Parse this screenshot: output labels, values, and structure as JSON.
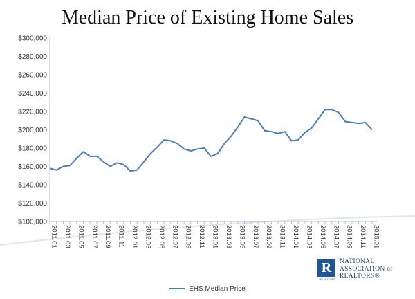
{
  "chart_data": {
    "type": "line",
    "title": "Median Price of Existing Home Sales",
    "xlabel": "",
    "ylabel": "",
    "ylim": [
      100000,
      300000
    ],
    "y_ticks": [
      "$100,000",
      "$120,000",
      "$140,000",
      "$160,000",
      "$180,000",
      "$200,000",
      "$220,000",
      "$240,000",
      "$260,000",
      "$280,000",
      "$300,000"
    ],
    "x_tick_labels": [
      "2011.01",
      "2011.03",
      "2011.05",
      "2011.07",
      "2011.09",
      "2011.11",
      "2012.01",
      "2012.03",
      "2012.05",
      "2012.07",
      "2012.09",
      "2012.11",
      "2013.01",
      "2013.03",
      "2013.05",
      "2013.07",
      "2013.09",
      "2013.11",
      "2014.01",
      "2014.03",
      "2014.05",
      "2014.07",
      "2014.09",
      "2014.11",
      "2015.01"
    ],
    "categories": [
      "2011.01",
      "2011.02",
      "2011.03",
      "2011.04",
      "2011.05",
      "2011.06",
      "2011.07",
      "2011.08",
      "2011.09",
      "2011.10",
      "2011.11",
      "2011.12",
      "2012.01",
      "2012.02",
      "2012.03",
      "2012.04",
      "2012.05",
      "2012.06",
      "2012.07",
      "2012.08",
      "2012.09",
      "2012.10",
      "2012.11",
      "2012.12",
      "2013.01",
      "2013.02",
      "2013.03",
      "2013.04",
      "2013.05",
      "2013.06",
      "2013.07",
      "2013.08",
      "2013.09",
      "2013.10",
      "2013.11",
      "2013.12",
      "2014.01",
      "2014.02",
      "2014.03",
      "2014.04",
      "2014.05",
      "2014.06",
      "2014.07",
      "2014.08",
      "2014.09",
      "2014.10",
      "2014.11",
      "2014.12",
      "2015.01"
    ],
    "series": [
      {
        "name": "EHS Median Price",
        "color": "#4a7ebb",
        "values": [
          158000,
          156000,
          160000,
          161000,
          169000,
          176000,
          171000,
          171000,
          165000,
          160000,
          164000,
          162000,
          155000,
          156000,
          165000,
          174000,
          181000,
          189000,
          188000,
          185000,
          179000,
          177000,
          179000,
          180000,
          171000,
          174000,
          185000,
          193000,
          203000,
          214000,
          212000,
          210000,
          199000,
          198000,
          196000,
          198000,
          188000,
          189000,
          197000,
          202000,
          212000,
          222000,
          222000,
          219000,
          209000,
          208000,
          207000,
          208000,
          200000
        ]
      }
    ],
    "grid": false,
    "legend_position": "bottom"
  },
  "logo": {
    "mark_letter": "R",
    "mark_subtext": "REALTOR®",
    "line1": "NATIONAL",
    "line2": "ASSOCIATION of",
    "line3": "REALTORS®"
  }
}
